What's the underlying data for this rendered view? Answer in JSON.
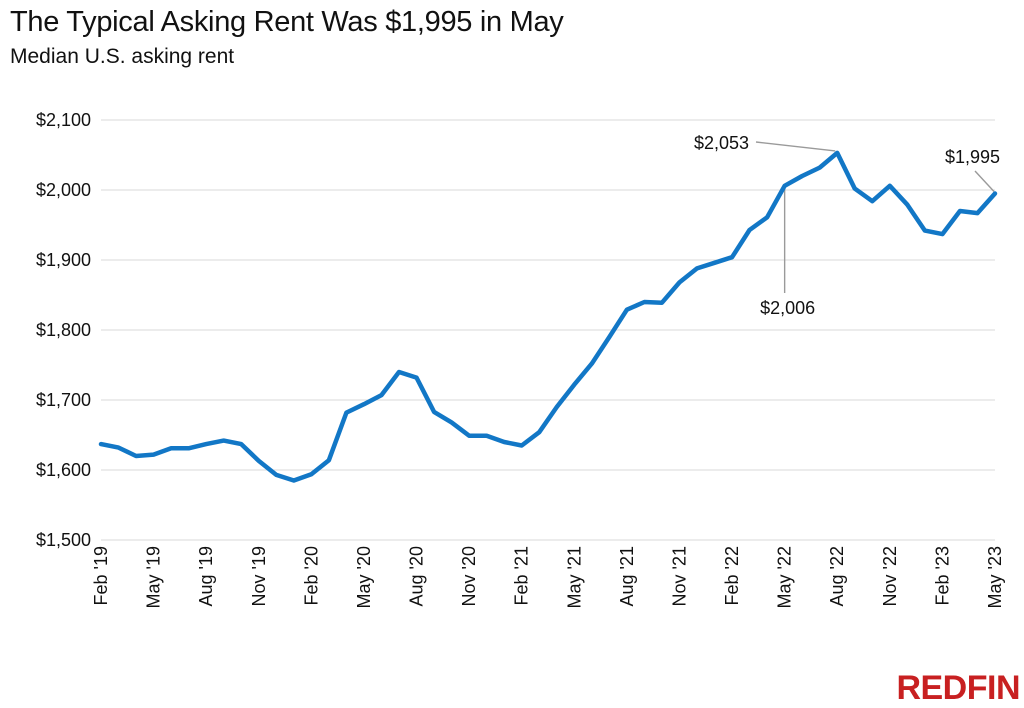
{
  "logo_text": "REDFIN",
  "colors": {
    "line": "#1277c6",
    "logo": "#c82021",
    "grid": "#d9d9d9",
    "leader": "#9a9a9a"
  },
  "chart_data": {
    "type": "line",
    "title": "The Typical Asking Rent Was $1,995 in May",
    "subtitle": "Median U.S. asking rent",
    "xlabel": "",
    "ylabel": "",
    "ylim": [
      1500,
      2100
    ],
    "y_ticks": [
      1500,
      1600,
      1700,
      1800,
      1900,
      2000,
      2100
    ],
    "y_tick_labels": [
      "$1,500",
      "$1,600",
      "$1,700",
      "$1,800",
      "$1,900",
      "$2,000",
      "$2,100"
    ],
    "grid": true,
    "x": [
      "Feb '19",
      "Mar '19",
      "Apr '19",
      "May '19",
      "Jun '19",
      "Jul '19",
      "Aug '19",
      "Sep '19",
      "Oct '19",
      "Nov '19",
      "Dec '19",
      "Jan '20",
      "Feb '20",
      "Mar '20",
      "Apr '20",
      "May '20",
      "Jun '20",
      "Jul '20",
      "Aug '20",
      "Sep '20",
      "Oct '20",
      "Nov '20",
      "Dec '20",
      "Jan '21",
      "Feb '21",
      "Mar '21",
      "Apr '21",
      "May '21",
      "Jun '21",
      "Jul '21",
      "Aug '21",
      "Sep '21",
      "Oct '21",
      "Nov '21",
      "Dec '21",
      "Jan '22",
      "Feb '22",
      "Mar '22",
      "Apr '22",
      "May '22",
      "Jun '22",
      "Jul '22",
      "Aug '22",
      "Sep '22",
      "Oct '22",
      "Nov '22",
      "Dec '22",
      "Jan '23",
      "Feb '23",
      "Mar '23",
      "Apr '23",
      "May '23"
    ],
    "x_tick_labels": [
      "Feb '19",
      "May '19",
      "Aug '19",
      "Nov '19",
      "Feb '20",
      "May '20",
      "Aug '20",
      "Nov '20",
      "Feb '21",
      "May '21",
      "Aug '21",
      "Nov '21",
      "Feb '22",
      "May '22",
      "Aug '22",
      "Nov '22",
      "Feb '23",
      "May '23"
    ],
    "series": [
      {
        "values": [
          1637,
          1632,
          1620,
          1622,
          1631,
          1631,
          1637,
          1642,
          1637,
          1613,
          1593,
          1585,
          1594,
          1614,
          1682,
          1694,
          1707,
          1740,
          1732,
          1683,
          1668,
          1649,
          1649,
          1640,
          1635,
          1654,
          1690,
          1722,
          1752,
          1790,
          1829,
          1840,
          1839,
          1868,
          1888,
          1896,
          1904,
          1943,
          1961,
          2006,
          2020,
          2032,
          2053,
          2002,
          1984,
          2006,
          1979,
          1942,
          1937,
          1970,
          1967,
          1995
        ]
      }
    ],
    "annotations": [
      {
        "label": "$2,053",
        "index": 42,
        "value": 2053
      },
      {
        "label": "$2,006",
        "index": 39,
        "value": 2006
      },
      {
        "label": "$1,995",
        "index": 51,
        "value": 1995
      }
    ]
  }
}
